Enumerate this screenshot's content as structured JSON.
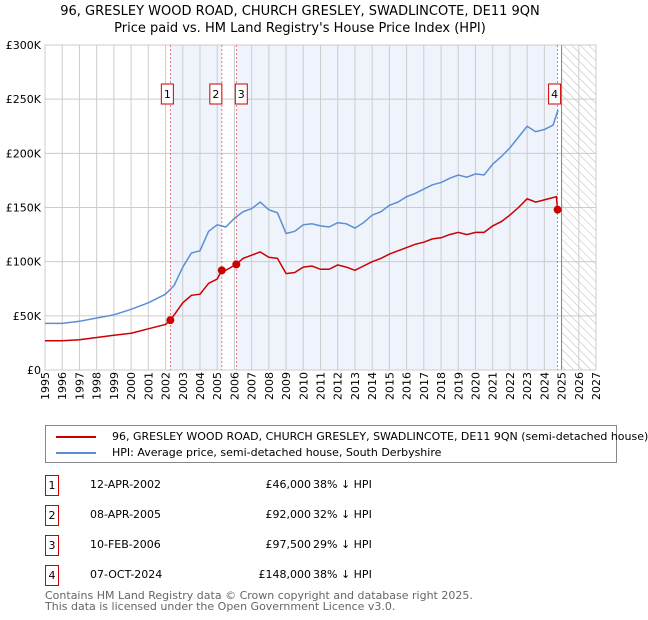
{
  "title": "96, GRESLEY WOOD ROAD, CHURCH GRESLEY, SWADLINCOTE, DE11 9QN",
  "subtitle": "Price paid vs. HM Land Registry's House Price Index (HPI)",
  "chart_data": {
    "type": "line",
    "title": "96, GRESLEY WOOD ROAD, CHURCH GRESLEY, SWADLINCOTE, DE11 9QN",
    "xlim": [
      1995,
      2027
    ],
    "ylim": [
      0,
      300000
    ],
    "xticks": [
      "1995",
      "1996",
      "1997",
      "1998",
      "1999",
      "2000",
      "2001",
      "2002",
      "2003",
      "2004",
      "2005",
      "2006",
      "2007",
      "2008",
      "2009",
      "2010",
      "2011",
      "2012",
      "2013",
      "2014",
      "2015",
      "2016",
      "2017",
      "2018",
      "2019",
      "2020",
      "2021",
      "2022",
      "2023",
      "2024",
      "2025",
      "2026",
      "2027"
    ],
    "yticks": [
      {
        "v": 0,
        "label": "£0"
      },
      {
        "v": 50000,
        "label": "£50K"
      },
      {
        "v": 100000,
        "label": "£100K"
      },
      {
        "v": 150000,
        "label": "£150K"
      },
      {
        "v": 200000,
        "label": "£200K"
      },
      {
        "v": 250000,
        "label": "£250K"
      },
      {
        "v": 300000,
        "label": "£300K"
      }
    ],
    "forecast_start": 2025.0,
    "series": [
      {
        "name": "96, GRESLEY WOOD ROAD, CHURCH GRESLEY, SWADLINCOTE, DE11 9QN (semi-detached house)",
        "color": "#cc0000",
        "x": [
          1995,
          1996,
          1997,
          1998,
          1999,
          2000,
          2001,
          2002,
          2002.28,
          2003,
          2003.5,
          2004,
          2004.5,
          2005,
          2005.27,
          2005.5,
          2006.1,
          2006.5,
          2007,
          2007.5,
          2008,
          2008.5,
          2009,
          2009.5,
          2010,
          2010.5,
          2011,
          2011.5,
          2012,
          2012.5,
          2013,
          2013.5,
          2014,
          2014.5,
          2015,
          2015.5,
          2016,
          2016.5,
          2017,
          2017.5,
          2018,
          2018.5,
          2019,
          2019.5,
          2020,
          2020.5,
          2021,
          2021.5,
          2022,
          2022.5,
          2023,
          2023.5,
          2024,
          2024.7,
          2024.77
        ],
        "y": [
          27000,
          27000,
          28000,
          30000,
          32000,
          34000,
          38000,
          42000,
          46000,
          62000,
          69000,
          70000,
          80000,
          84000,
          92000,
          92000,
          97500,
          103000,
          106000,
          109000,
          104000,
          103000,
          89000,
          90000,
          95000,
          96000,
          93000,
          93000,
          97000,
          95000,
          92000,
          96000,
          100000,
          103000,
          107000,
          110000,
          113000,
          116000,
          118000,
          121000,
          122000,
          125000,
          127000,
          125000,
          127000,
          127000,
          133000,
          137000,
          143000,
          150000,
          158000,
          155000,
          157000,
          160000,
          148000
        ]
      },
      {
        "name": "HPI: Average price, semi-detached house, South Derbyshire",
        "color": "#5b8fd4",
        "x": [
          1995,
          1996,
          1997,
          1998,
          1999,
          2000,
          2001,
          2002,
          2002.5,
          2003,
          2003.5,
          2004,
          2004.5,
          2005,
          2005.5,
          2006,
          2006.5,
          2007,
          2007.5,
          2008,
          2008.5,
          2009,
          2009.5,
          2010,
          2010.5,
          2011,
          2011.5,
          2012,
          2012.5,
          2013,
          2013.5,
          2014,
          2014.5,
          2015,
          2015.5,
          2016,
          2016.5,
          2017,
          2017.5,
          2018,
          2018.5,
          2019,
          2019.5,
          2020,
          2020.5,
          2021,
          2021.5,
          2022,
          2022.5,
          2023,
          2023.5,
          2024,
          2024.5,
          2024.8
        ],
        "y": [
          43000,
          43000,
          45000,
          48000,
          51000,
          56000,
          62000,
          70000,
          78000,
          95000,
          108000,
          110000,
          128000,
          134000,
          132000,
          140000,
          146000,
          149000,
          155000,
          148000,
          145000,
          126000,
          128000,
          134000,
          135000,
          133000,
          132000,
          136000,
          135000,
          131000,
          136000,
          143000,
          146000,
          152000,
          155000,
          160000,
          163000,
          167000,
          171000,
          173000,
          177000,
          180000,
          178000,
          181000,
          180000,
          190000,
          197000,
          205000,
          215000,
          225000,
          220000,
          222000,
          226000,
          240000
        ]
      }
    ],
    "sales": [
      {
        "n": "1",
        "x": 2002.28,
        "y": 46000
      },
      {
        "n": "2",
        "x": 2005.27,
        "y": 92000
      },
      {
        "n": "3",
        "x": 2006.11,
        "y": 97500
      },
      {
        "n": "4",
        "x": 2024.77,
        "y": 148000
      }
    ]
  },
  "legend": {
    "property": "96, GRESLEY WOOD ROAD, CHURCH GRESLEY, SWADLINCOTE, DE11 9QN (semi-detached house)",
    "hpi": "HPI: Average price, semi-detached house, South Derbyshire"
  },
  "transactions": [
    {
      "n": "1",
      "date": "12-APR-2002",
      "price": "£46,000",
      "hpi": "38% ↓ HPI"
    },
    {
      "n": "2",
      "date": "08-APR-2005",
      "price": "£92,000",
      "hpi": "32% ↓ HPI"
    },
    {
      "n": "3",
      "date": "10-FEB-2006",
      "price": "£97,500",
      "hpi": "29% ↓ HPI"
    },
    {
      "n": "4",
      "date": "07-OCT-2024",
      "price": "£148,000",
      "hpi": "38% ↓ HPI"
    }
  ],
  "footer": {
    "line1": "Contains HM Land Registry data © Crown copyright and database right 2025.",
    "line2": "This data is licensed under the Open Government Licence v3.0."
  }
}
